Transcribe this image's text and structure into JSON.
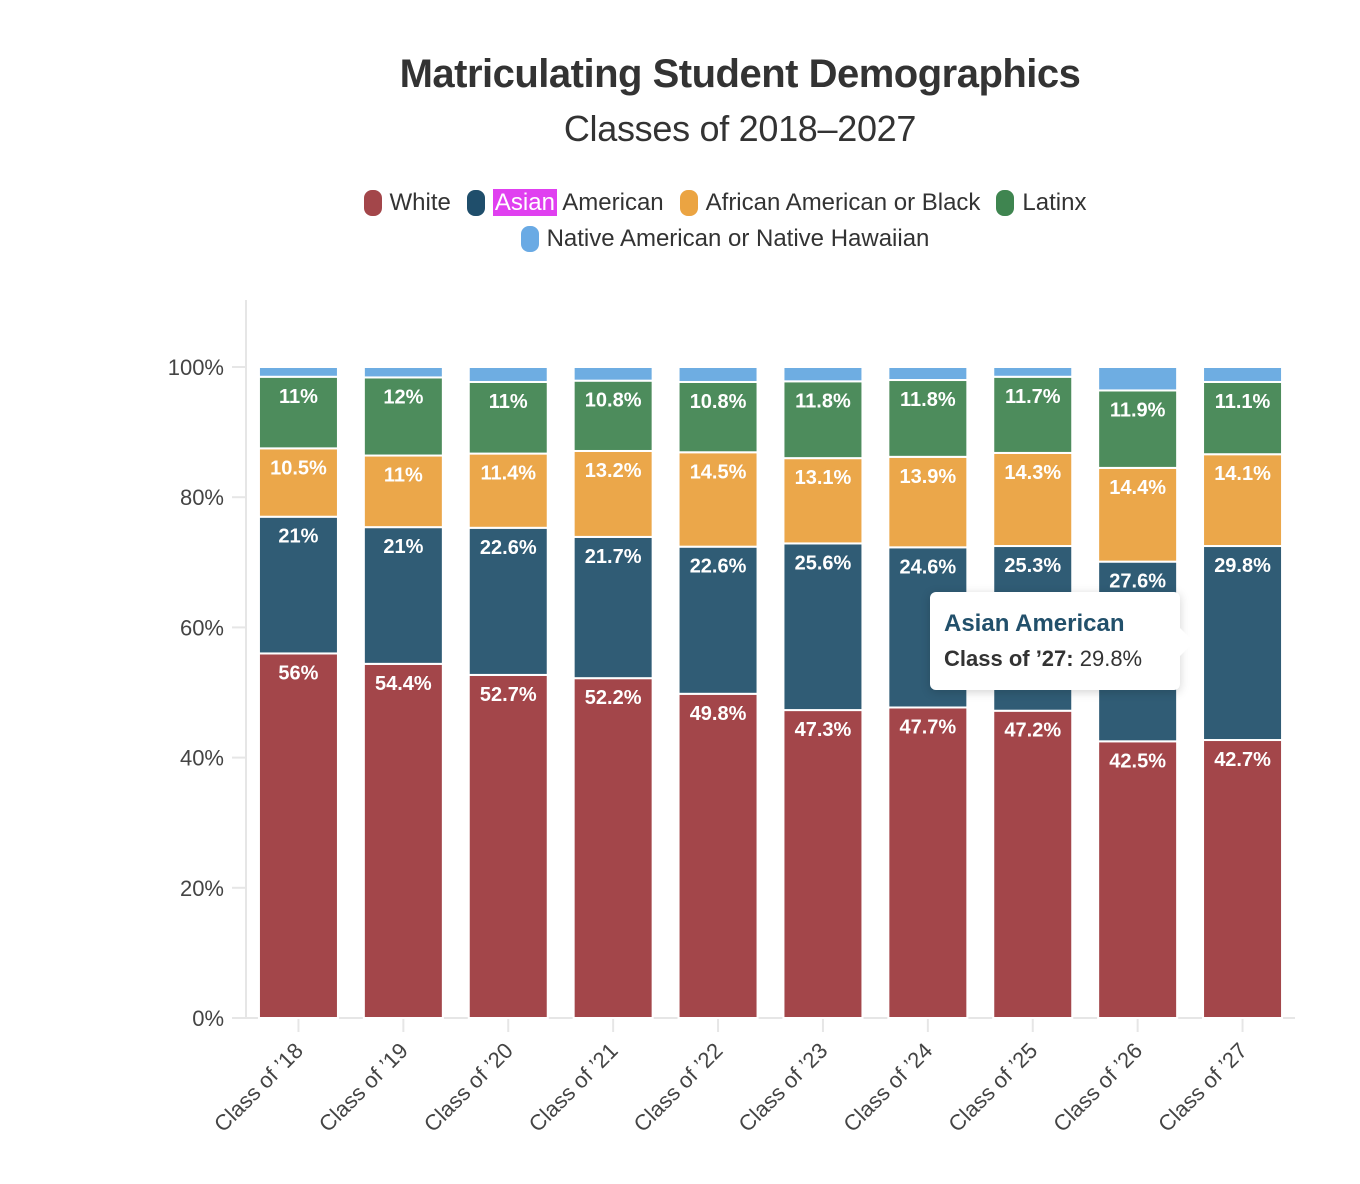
{
  "chart_data": {
    "type": "bar",
    "stacked": true,
    "normalized": true,
    "title": "Matriculating Student Demographics",
    "subtitle": "Classes of 2018–2027",
    "xlabel": "",
    "ylabel": "",
    "ylim": [
      0,
      100
    ],
    "yticks": [
      "0%",
      "20%",
      "40%",
      "60%",
      "80%",
      "100%"
    ],
    "ytick_values": [
      0,
      20,
      40,
      60,
      80,
      100
    ],
    "grid": false,
    "legend_position": "top",
    "categories": [
      "Class of ’18",
      "Class of ’19",
      "Class of ’20",
      "Class of ’21",
      "Class of ’22",
      "Class of ’23",
      "Class of ’24",
      "Class of ’25",
      "Class of ’26",
      "Class of ’27"
    ],
    "series": [
      {
        "name": "White",
        "color": "#a3464a",
        "values": [
          56,
          54.4,
          52.7,
          52.2,
          49.8,
          47.3,
          47.7,
          47.2,
          42.5,
          42.7
        ],
        "labels": [
          "56%",
          "54.4%",
          "52.7%",
          "52.2%",
          "49.8%",
          "47.3%",
          "47.7%",
          "47.2%",
          "42.5%",
          "42.7%"
        ]
      },
      {
        "name": "Asian American",
        "color": "#305c75",
        "values": [
          21,
          21,
          22.6,
          21.7,
          22.6,
          25.6,
          24.6,
          25.3,
          27.6,
          29.8
        ],
        "labels": [
          "21%",
          "21%",
          "22.6%",
          "21.7%",
          "22.6%",
          "25.6%",
          "24.6%",
          "25.3%",
          "27.6%",
          "29.8%"
        ]
      },
      {
        "name": "African American or Black",
        "color": "#eba74a",
        "values": [
          10.5,
          11,
          11.4,
          13.2,
          14.5,
          13.1,
          13.9,
          14.3,
          14.4,
          14.1
        ],
        "labels": [
          "10.5%",
          "11%",
          "11.4%",
          "13.2%",
          "14.5%",
          "13.1%",
          "13.9%",
          "14.3%",
          "14.4%",
          "14.1%"
        ]
      },
      {
        "name": "Latinx",
        "color": "#4d8c5c",
        "values": [
          11,
          12,
          11,
          10.8,
          10.8,
          11.8,
          11.8,
          11.7,
          11.9,
          11.1
        ],
        "labels": [
          "11%",
          "12%",
          "11%",
          "10.8%",
          "10.8%",
          "11.8%",
          "11.8%",
          "11.7%",
          "11.9%",
          "11.1%"
        ]
      },
      {
        "name": "Native American or Native Hawaiian",
        "color": "#6eade2",
        "values": [
          1.5,
          1.6,
          2.3,
          2.1,
          2.3,
          2.2,
          2.0,
          1.5,
          3.6,
          2.3
        ],
        "labels": [
          "",
          "",
          "",
          "",
          "",
          "",
          "",
          "",
          "",
          ""
        ]
      }
    ]
  },
  "legend": {
    "items": [
      {
        "name": "White",
        "color": "#a3464a"
      },
      {
        "highlight": "Asian",
        "rest": " American",
        "color": "#1f4e6b"
      },
      {
        "name": "African American or Black",
        "color": "#eba442"
      },
      {
        "name": "Latinx",
        "color": "#3f8550"
      },
      {
        "name": "Native American or Native Hawaiian",
        "color": "#6aaae4"
      }
    ]
  },
  "tooltip": {
    "series": "Asian American",
    "category": "Class of ’27:",
    "value": "29.8%"
  }
}
